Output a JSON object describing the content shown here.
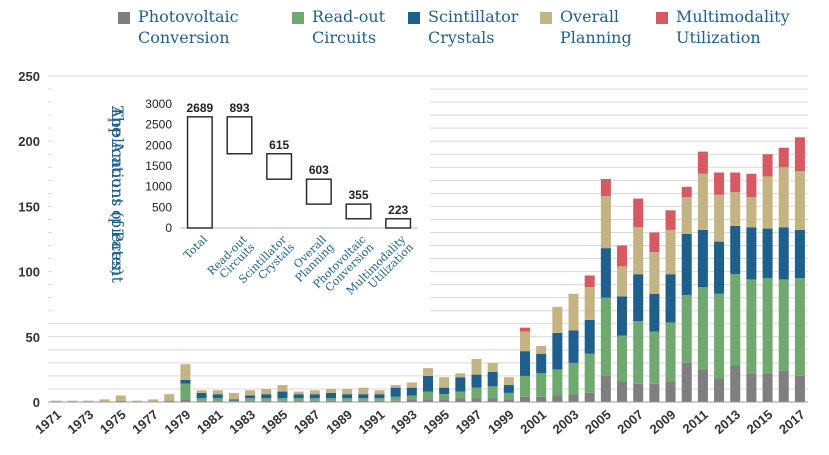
{
  "legend": [
    {
      "label": "Photovoltaic\nConversion",
      "color": "#7f7f7f"
    },
    {
      "label": "Read-out\nCircuits",
      "color": "#70a970"
    },
    {
      "label": "Scintillator\nCrystals",
      "color": "#1f5f8b"
    },
    {
      "label": "Overall\nPlanning",
      "color": "#c4b483"
    },
    {
      "label": "Multimodality\nUtilization",
      "color": "#d65a62"
    }
  ],
  "chart_data": [
    {
      "type": "bar",
      "stacked": true,
      "years": [
        "1971",
        "1972",
        "1973",
        "1974",
        "1975",
        "1976",
        "1977",
        "1978",
        "1979",
        "1980",
        "1981",
        "1982",
        "1983",
        "1984",
        "1985",
        "1986",
        "1987",
        "1988",
        "1989",
        "1990",
        "1991",
        "1992",
        "1993",
        "1994",
        "1995",
        "1996",
        "1997",
        "1998",
        "1999",
        "2000",
        "2001",
        "2002",
        "2003",
        "2004",
        "2005",
        "2006",
        "2007",
        "2008",
        "2009",
        "2010",
        "2011",
        "2012",
        "2013",
        "2014",
        "2015",
        "2016",
        "2017"
      ],
      "x_tick_labels": [
        "1971",
        "1973",
        "1975",
        "1977",
        "1979",
        "1981",
        "1983",
        "1985",
        "1987",
        "1989",
        "1991",
        "1993",
        "1995",
        "1997",
        "1999",
        "2001",
        "2003",
        "2005",
        "2007",
        "2009",
        "2011",
        "2013",
        "2015",
        "2017"
      ],
      "series": [
        {
          "name": "Photovoltaic Conversion",
          "color": "#7f7f7f",
          "values": [
            0,
            0,
            0,
            0,
            1,
            0,
            0,
            1,
            2,
            1,
            1,
            0,
            1,
            1,
            1,
            1,
            1,
            1,
            1,
            1,
            1,
            1,
            2,
            2,
            2,
            3,
            3,
            3,
            2,
            4,
            4,
            5,
            6,
            7,
            20,
            16,
            14,
            14,
            16,
            30,
            25,
            18,
            28,
            22,
            22,
            24,
            20
          ]
        },
        {
          "name": "Read-out Circuits",
          "color": "#70a970",
          "values": [
            0,
            0,
            0,
            0,
            0,
            0,
            0,
            0,
            12,
            2,
            2,
            1,
            2,
            2,
            2,
            2,
            2,
            2,
            2,
            2,
            2,
            3,
            3,
            6,
            4,
            5,
            8,
            9,
            5,
            16,
            18,
            20,
            24,
            30,
            60,
            35,
            48,
            40,
            45,
            52,
            63,
            65,
            70,
            72,
            73,
            70,
            75
          ]
        },
        {
          "name": "Scintillator Crystals",
          "color": "#1f5f8b",
          "values": [
            0,
            0,
            0,
            0,
            0,
            0,
            0,
            0,
            3,
            4,
            3,
            1,
            2,
            3,
            5,
            3,
            3,
            4,
            3,
            3,
            3,
            7,
            6,
            12,
            5,
            11,
            10,
            11,
            6,
            19,
            15,
            28,
            25,
            26,
            38,
            30,
            36,
            29,
            37,
            47,
            44,
            40,
            37,
            40,
            38,
            40,
            37
          ]
        },
        {
          "name": "Overall Planning",
          "color": "#c4b483",
          "values": [
            1,
            1,
            1,
            2,
            4,
            1,
            2,
            5,
            12,
            2,
            3,
            5,
            4,
            4,
            5,
            2,
            3,
            3,
            4,
            5,
            3,
            2,
            4,
            6,
            8,
            3,
            12,
            7,
            6,
            15,
            6,
            20,
            28,
            25,
            40,
            23,
            36,
            32,
            34,
            28,
            43,
            36,
            26,
            23,
            40,
            46,
            45
          ]
        },
        {
          "name": "Multimodality Utilization",
          "color": "#d65a62",
          "values": [
            0,
            0,
            0,
            0,
            0,
            0,
            0,
            0,
            0,
            0,
            0,
            0,
            0,
            0,
            0,
            0,
            0,
            0,
            0,
            0,
            0,
            0,
            0,
            0,
            0,
            0,
            0,
            0,
            0,
            3,
            0,
            0,
            0,
            9,
            13,
            16,
            22,
            15,
            15,
            8,
            17,
            17,
            15,
            18,
            17,
            15,
            26
          ]
        }
      ],
      "ylim": [
        0,
        250
      ],
      "yticks": [
        0,
        50,
        100,
        150,
        200,
        250
      ],
      "grid": true
    },
    {
      "type": "bar",
      "subtype": "waterfall",
      "title": "",
      "ylabel": "The Amount of Patent Applications (pieces)",
      "categories": [
        "Total",
        "Read-out Circuits",
        "Scintillator Crystals",
        "Overall Planning",
        "Photovoltaic Conversion",
        "Multimodality Utilization"
      ],
      "values": [
        2689,
        893,
        615,
        603,
        355,
        223
      ],
      "value_labels": [
        "2689",
        "893",
        "615",
        "603",
        "355",
        "223"
      ],
      "ylim": [
        0,
        3000
      ],
      "yticks": [
        0,
        500,
        1000,
        1500,
        2000,
        2500,
        3000
      ]
    }
  ]
}
